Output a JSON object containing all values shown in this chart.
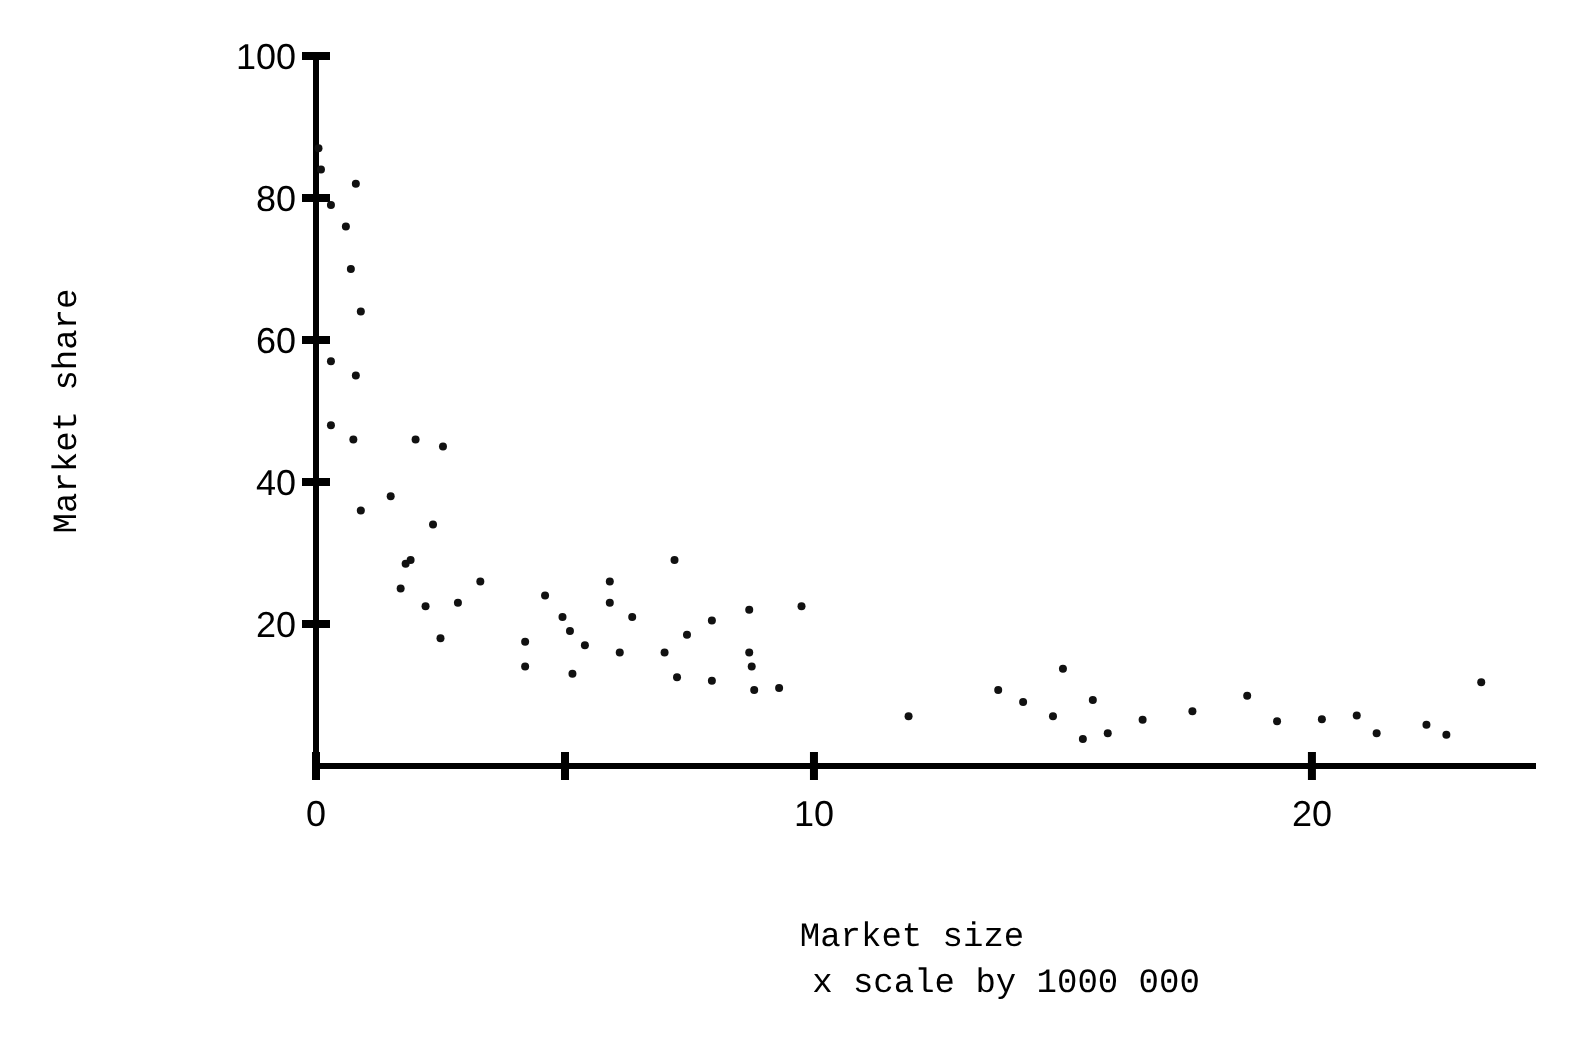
{
  "chart_data": {
    "type": "scatter",
    "xlabel": "Market size",
    "ylabel": "Market share",
    "annotations": [
      "x scale by 1000 000"
    ],
    "xlim": [
      0,
      24.5
    ],
    "ylim": [
      0,
      100
    ],
    "xticks": [
      0,
      {
        "value": 5,
        "label": null
      },
      10,
      20
    ],
    "yticks": [
      20,
      40,
      60,
      80,
      100
    ],
    "marker": "circle",
    "grid": false,
    "series": [
      {
        "color": "#111111",
        "x": [
          0.05,
          0.1,
          0.8,
          0.3,
          0.6,
          0.7,
          0.9,
          0.3,
          0.8,
          0.3,
          0.75,
          2.0,
          2.55,
          1.5,
          0.9,
          2.35,
          1.9,
          1.8,
          3.3,
          1.7,
          2.2,
          2.85,
          4.6,
          2.5,
          4.2,
          4.2,
          4.95,
          5.9,
          5.9,
          7.2,
          5.1,
          5.4,
          6.1,
          5.15,
          6.35,
          7.45,
          7.0,
          7.25,
          7.95,
          7.95,
          8.7,
          8.7,
          8.75,
          8.8,
          9.3,
          9.75,
          11.9,
          13.7,
          14.2,
          15.0,
          14.8,
          15.6,
          15.4,
          15.9,
          16.6,
          17.6,
          18.7,
          19.3,
          20.2,
          20.9,
          21.3,
          22.3,
          22.7,
          23.4
        ],
        "values": [
          87,
          84,
          82,
          79,
          76,
          70,
          64,
          57,
          55,
          48,
          46,
          46,
          45,
          38,
          36,
          34,
          29,
          28.5,
          26,
          25,
          22.5,
          23,
          24,
          18,
          17.5,
          14,
          21,
          26,
          23,
          29,
          19,
          17,
          16,
          13,
          21,
          18.5,
          16,
          12.5,
          20.5,
          12,
          22,
          16,
          14,
          10.7,
          11,
          22.5,
          7,
          10.7,
          9,
          13.7,
          7,
          9.3,
          3.8,
          4.6,
          6.5,
          7.7,
          9.9,
          6.3,
          6.6,
          7.1,
          4.6,
          5.8,
          4.4,
          11.8
        ]
      }
    ]
  }
}
